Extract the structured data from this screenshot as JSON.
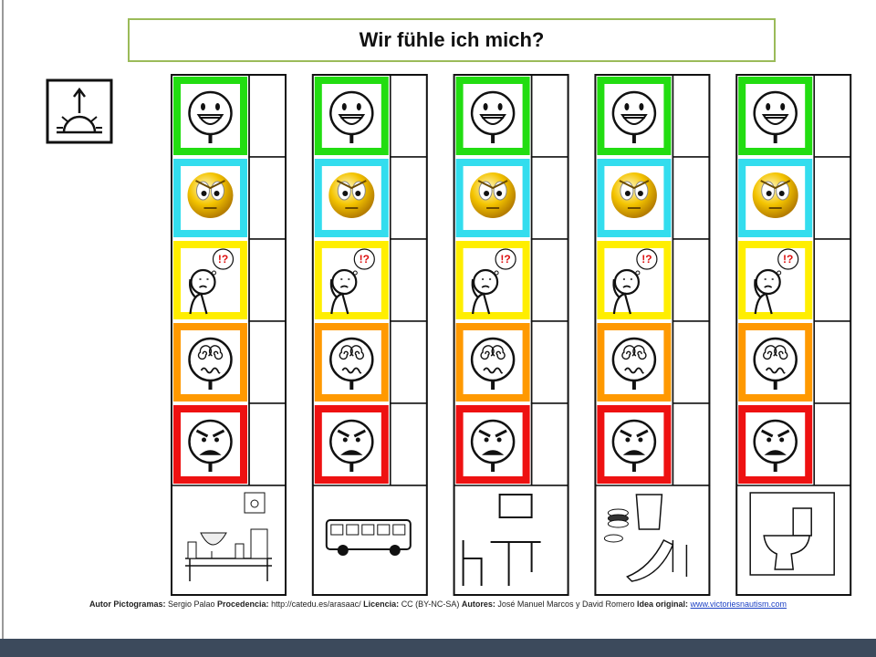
{
  "title": "Wir fühle ich mich?",
  "pictogram_text": "!?",
  "footer": [
    {
      "label": "Autor Pictogramas:",
      "text": "Sergio Palao"
    },
    {
      "label": "Procedencia:",
      "text": "http://catedu.es/arasaac/"
    },
    {
      "label": "Licencia:",
      "text": "CC (BY-NC-SA)"
    },
    {
      "label": "Autores:",
      "text": "José Manuel Marcos y David Romero"
    },
    {
      "label": "Idea original:",
      "text": ""
    }
  ],
  "link": "www.victoriesnautism.com"
}
